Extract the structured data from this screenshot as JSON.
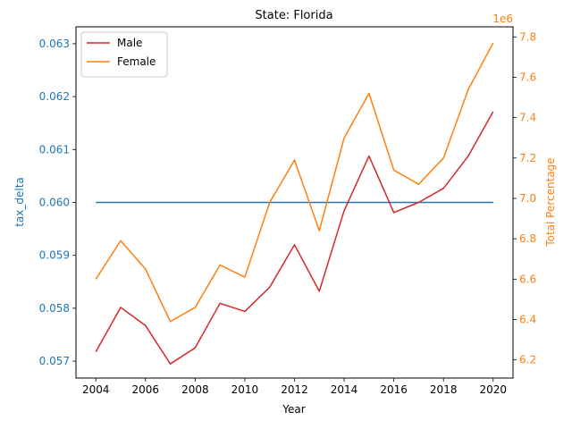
{
  "chart_data": {
    "type": "line",
    "title": "State: Florida",
    "xlabel": "Year",
    "ylabel_left": "tax_delta",
    "ylabel_right": "Total Percentage",
    "right_axis_offset_text": "1e6",
    "x": [
      2004,
      2005,
      2006,
      2007,
      2008,
      2009,
      2010,
      2011,
      2012,
      2013,
      2014,
      2015,
      2016,
      2017,
      2018,
      2019,
      2020
    ],
    "xlim": [
      2003.2,
      2020.8
    ],
    "xticks": [
      2004,
      2006,
      2008,
      2010,
      2012,
      2014,
      2016,
      2018,
      2020
    ],
    "ylim_left": [
      0.05668,
      0.06332
    ],
    "yticks_left": [
      0.057,
      0.058,
      0.059,
      0.06,
      0.061,
      0.062,
      0.063
    ],
    "ylim_right": [
      6.11,
      7.85
    ],
    "yticks_right": [
      6.2,
      6.4,
      6.6,
      6.8,
      7.0,
      7.2,
      7.4,
      7.6,
      7.8
    ],
    "series": [
      {
        "axis": "left",
        "color": "#1f77b4",
        "values": [
          0.06,
          0.06,
          0.06,
          0.06,
          0.06,
          0.06,
          0.06,
          0.06,
          0.06,
          0.06,
          0.06,
          0.06,
          0.06,
          0.06,
          0.06,
          0.06,
          0.06
        ]
      },
      {
        "name": "Male",
        "axis": "right",
        "color": "#d62728",
        "values": [
          6.24,
          6.46,
          6.37,
          6.18,
          6.26,
          6.48,
          6.44,
          6.56,
          6.77,
          6.54,
          6.94,
          7.21,
          6.93,
          6.98,
          7.05,
          7.21,
          7.43
        ]
      },
      {
        "name": "Female",
        "axis": "right",
        "color": "#ff7f0e",
        "values": [
          6.6,
          6.79,
          6.65,
          6.39,
          6.46,
          6.67,
          6.61,
          6.98,
          7.19,
          6.84,
          7.3,
          7.52,
          7.14,
          7.07,
          7.2,
          7.54,
          7.77
        ]
      }
    ],
    "legend": {
      "position": "top-left",
      "entries": [
        "Male",
        "Female"
      ]
    },
    "grid": false
  }
}
